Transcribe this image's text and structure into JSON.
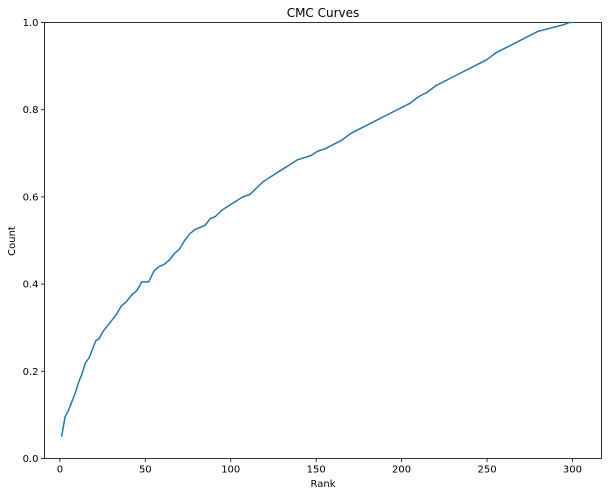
{
  "chart_data": {
    "type": "line",
    "title": "CMC Curves",
    "xlabel": "Rank",
    "ylabel": "Count",
    "xlim": [
      -9,
      317
    ],
    "ylim": [
      0,
      1.0
    ],
    "xticks": [
      0,
      50,
      100,
      150,
      200,
      250,
      300
    ],
    "yticks": [
      0.0,
      0.2,
      0.4,
      0.6,
      0.8,
      1.0
    ],
    "xtick_labels": [
      "0",
      "50",
      "100",
      "150",
      "200",
      "250",
      "300"
    ],
    "ytick_labels": [
      "0.0",
      "0.2",
      "0.4",
      "0.6",
      "0.8",
      "1.0"
    ],
    "grid": false,
    "series": [
      {
        "color": "#1f77b4",
        "x": [
          1,
          3,
          5,
          7,
          9,
          11,
          13,
          15,
          17,
          19,
          21,
          23,
          25,
          27,
          30,
          33,
          36,
          39,
          42,
          45,
          48,
          50,
          52,
          55,
          58,
          61,
          64,
          67,
          70,
          73,
          76,
          79,
          82,
          85,
          88,
          91,
          95,
          99,
          103,
          107,
          111,
          115,
          119,
          123,
          127,
          131,
          135,
          139,
          143,
          147,
          151,
          155,
          160,
          165,
          170,
          175,
          180,
          185,
          190,
          195,
          200,
          205,
          210,
          215,
          220,
          225,
          230,
          235,
          240,
          245,
          250,
          255,
          260,
          265,
          270,
          275,
          280,
          285,
          290,
          295,
          298,
          300
        ],
        "y": [
          0.05,
          0.095,
          0.11,
          0.13,
          0.15,
          0.175,
          0.195,
          0.22,
          0.23,
          0.25,
          0.27,
          0.275,
          0.29,
          0.3,
          0.315,
          0.33,
          0.35,
          0.36,
          0.375,
          0.385,
          0.405,
          0.405,
          0.405,
          0.43,
          0.44,
          0.445,
          0.455,
          0.47,
          0.48,
          0.5,
          0.515,
          0.525,
          0.53,
          0.535,
          0.55,
          0.555,
          0.57,
          0.58,
          0.59,
          0.6,
          0.605,
          0.62,
          0.635,
          0.645,
          0.655,
          0.665,
          0.675,
          0.685,
          0.69,
          0.695,
          0.705,
          0.71,
          0.72,
          0.73,
          0.745,
          0.755,
          0.765,
          0.775,
          0.785,
          0.795,
          0.805,
          0.815,
          0.83,
          0.84,
          0.855,
          0.865,
          0.875,
          0.885,
          0.895,
          0.905,
          0.915,
          0.93,
          0.94,
          0.95,
          0.96,
          0.97,
          0.98,
          0.985,
          0.99,
          0.995,
          1.0,
          1.0
        ]
      }
    ]
  }
}
